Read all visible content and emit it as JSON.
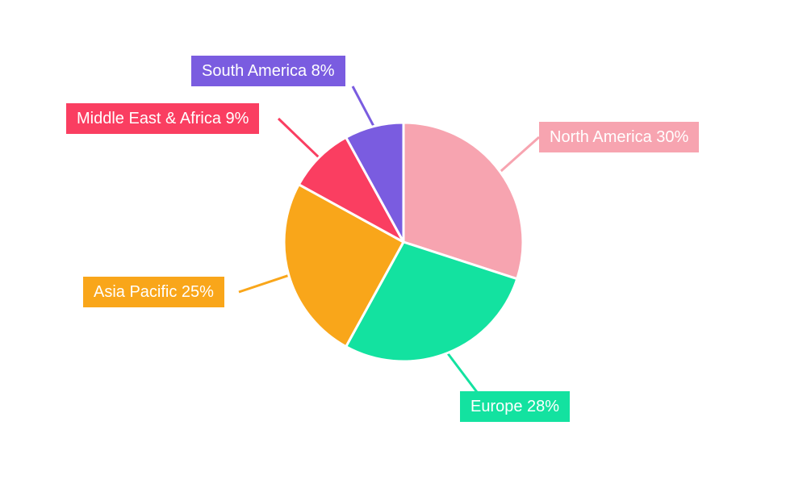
{
  "chart_data": {
    "type": "pie",
    "title": "",
    "categories": [
      "North America",
      "Europe",
      "Asia Pacific",
      "Middle East & Africa",
      "South America"
    ],
    "values": [
      30,
      28,
      25,
      9,
      8
    ],
    "unit": "%",
    "colors": [
      "#f7a4b0",
      "#13e2a0",
      "#f9a61a",
      "#fa3e61",
      "#7a5ce0"
    ],
    "direction": "clockwise",
    "start_angle_deg": 0,
    "legend_position": "callout-labels-with-leader-lines",
    "background": "#ffffff",
    "callouts": [
      {
        "text": "North America 30%"
      },
      {
        "text": "Europe 28%"
      },
      {
        "text": "Asia Pacific 25%"
      },
      {
        "text": "Middle East & Africa 9%"
      },
      {
        "text": "South America 8%"
      }
    ]
  }
}
